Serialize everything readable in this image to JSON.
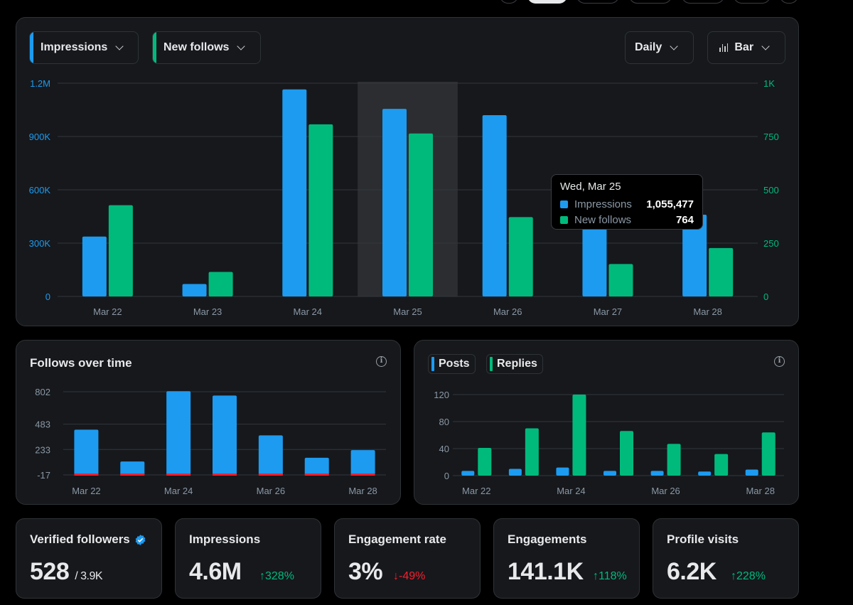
{
  "main_chart": {
    "metric_1": {
      "label": "Impressions",
      "color": "#1d9bf0"
    },
    "metric_2": {
      "label": "New follows",
      "color": "#00ba7c"
    },
    "interval": "Daily",
    "chart_type_label": "Bar",
    "tooltip": {
      "date": "Wed, Mar 25",
      "rows": [
        {
          "label": "Impressions",
          "value": "1,055,477",
          "color": "#1d9bf0"
        },
        {
          "label": "New follows",
          "value": "764",
          "color": "#00ba7c"
        }
      ]
    }
  },
  "follows_card": {
    "title": "Follows over time",
    "info_icon": "info-icon"
  },
  "posts_card": {
    "legend": [
      {
        "label": "Posts",
        "color": "#1d9bf0"
      },
      {
        "label": "Replies",
        "color": "#00ba7c"
      }
    ],
    "info_icon": "info-icon"
  },
  "stats": [
    {
      "label": "Verified followers",
      "value": "528",
      "sub": "/ 3.9K",
      "verified_icon": "verified-badge-icon"
    },
    {
      "label": "Impressions",
      "value": "4.6M",
      "delta": "328%",
      "direction": "up"
    },
    {
      "label": "Engagement rate",
      "value": "3%",
      "delta": "-49%",
      "direction": "down"
    },
    {
      "label": "Engagements",
      "value": "141.1K",
      "delta": "118%",
      "direction": "up"
    },
    {
      "label": "Profile visits",
      "value": "6.2K",
      "delta": "228%",
      "direction": "up"
    }
  ],
  "chart_data": [
    {
      "type": "bar",
      "categories": [
        "Mar 22",
        "Mar 23",
        "Mar 24",
        "Mar 25",
        "Mar 26",
        "Mar 27",
        "Mar 28"
      ],
      "highlight_category": "Mar 25",
      "series": [
        {
          "name": "Impressions",
          "axis": "left",
          "color": "#1d9bf0",
          "values": [
            337000,
            70000,
            1165000,
            1055477,
            1020000,
            430000,
            460000
          ]
        },
        {
          "name": "New follows",
          "axis": "right",
          "color": "#00ba7c",
          "values": [
            428,
            115,
            807,
            764,
            372,
            152,
            227
          ]
        }
      ],
      "y_left": {
        "ticks": [
          "0",
          "300K",
          "600K",
          "900K",
          "1.2M"
        ],
        "tick_values": [
          0,
          300000,
          600000,
          900000,
          1200000
        ],
        "range": [
          0,
          1200000
        ]
      },
      "y_right": {
        "ticks": [
          "0",
          "250",
          "500",
          "750",
          "1K"
        ],
        "tick_values": [
          0,
          250,
          500,
          750,
          1000
        ],
        "range": [
          0,
          1000
        ]
      },
      "grid": true
    },
    {
      "type": "bar",
      "title": "Follows over time",
      "categories": [
        "Mar 22",
        "Mar 23",
        "Mar 24",
        "Mar 25",
        "Mar 26",
        "Mar 27",
        "Mar 28"
      ],
      "x_labels": [
        "Mar 22",
        "",
        "Mar 24",
        "",
        "Mar 26",
        "",
        "Mar 28"
      ],
      "series": [
        {
          "name": "",
          "color": "#1d9bf0",
          "values": [
            428,
            115,
            807,
            764,
            372,
            152,
            227
          ]
        },
        {
          "name": "",
          "color": "#f4212e",
          "values": [
            -17,
            -17,
            -17,
            -17,
            -17,
            -17,
            -17
          ]
        }
      ],
      "y": {
        "ticks": [
          "-17",
          "233",
          "483",
          "802"
        ],
        "tick_values": [
          -17,
          233,
          483,
          802
        ],
        "range": [
          -17,
          802
        ]
      },
      "grid": true
    },
    {
      "type": "bar",
      "categories": [
        "Mar 22",
        "Mar 23",
        "Mar 24",
        "Mar 25",
        "Mar 26",
        "Mar 27",
        "Mar 28"
      ],
      "x_labels": [
        "Mar 22",
        "",
        "Mar 24",
        "",
        "Mar 26",
        "",
        "Mar 28"
      ],
      "series": [
        {
          "name": "Posts",
          "color": "#1d9bf0",
          "values": [
            7,
            10,
            12,
            7,
            7,
            6,
            9
          ]
        },
        {
          "name": "Replies",
          "color": "#00ba7c",
          "values": [
            41,
            70,
            120,
            66,
            47,
            32,
            64
          ]
        }
      ],
      "y": {
        "ticks": [
          "0",
          "40",
          "80",
          "120"
        ],
        "tick_values": [
          0,
          40,
          80,
          120
        ],
        "range": [
          0,
          120
        ]
      },
      "grid": true
    }
  ]
}
